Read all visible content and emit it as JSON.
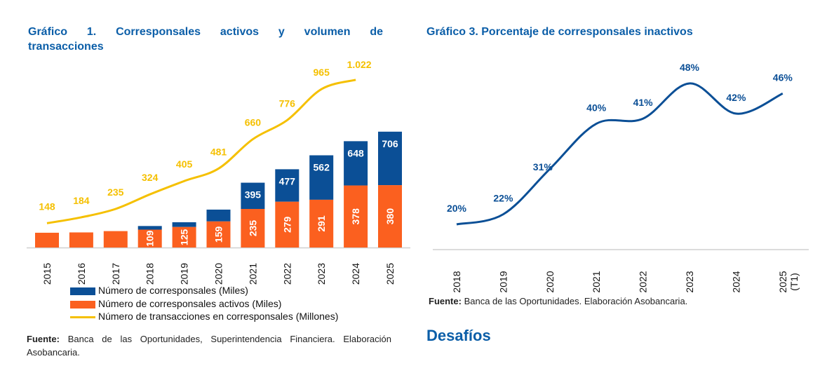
{
  "chart1": {
    "title_line1": "Gráfico 1. Corresponsales activos y volumen de",
    "title_line2": "transacciones",
    "source_label": "Fuente:",
    "source_text": "Banca de las Oportunidades, Superintendencia Financiera. Elaboración Asobancaria."
  },
  "chart3": {
    "title": "Gráfico 3. Porcentaje de corresponsales inactivos",
    "source_label": "Fuente:",
    "source_text": "Banca de las Oportunidades. Elaboración Asobancaria."
  },
  "section_heading": "Desafíos",
  "colors": {
    "title": "#0b5ea8",
    "total": "#0b4f96",
    "active": "#fb601f",
    "transactions": "#f5c000",
    "line3": "#0b4f96"
  },
  "chart_data": [
    {
      "type": "bar",
      "stacked": true,
      "categories": [
        "2015",
        "2016",
        "2017",
        "2018",
        "2019",
        "2020",
        "2021",
        "2022",
        "2023",
        "2024",
        "2025"
      ],
      "series": [
        {
          "name": "Número de corresponsales (Miles)",
          "kind": "bar-total",
          "values": [
            90,
            92,
            100,
            131,
            154,
            231,
            395,
            477,
            562,
            648,
            706
          ],
          "labels": [
            "",
            "",
            "",
            "",
            "",
            "",
            "395",
            "477",
            "562",
            "648",
            "706"
          ]
        },
        {
          "name": "Número de corresponsales activos (Miles)",
          "kind": "bar",
          "values": [
            90,
            92,
            100,
            109,
            125,
            159,
            235,
            279,
            291,
            378,
            380
          ],
          "labels": [
            "",
            "",
            "",
            "109",
            "125",
            "159",
            "235",
            "279",
            "291",
            "378",
            "380"
          ]
        },
        {
          "name": "Número de transacciones en corresponsales (Millones)",
          "kind": "line",
          "values": [
            148,
            184,
            235,
            324,
            405,
            481,
            660,
            776,
            965,
            1022,
            null
          ],
          "labels": [
            "148",
            "184",
            "235",
            "324",
            "405",
            "481",
            "660",
            "776",
            "965",
            "1.022",
            ""
          ]
        }
      ],
      "legend": "bottom",
      "grid": false
    },
    {
      "type": "line",
      "categories": [
        "2018",
        "2019",
        "2020",
        "2021",
        "2022",
        "2023",
        "2024",
        "2025 (T1)"
      ],
      "values": [
        20,
        22,
        31,
        40,
        41,
        48,
        42,
        46
      ],
      "labels": [
        "20%",
        "22%",
        "31%",
        "40%",
        "41%",
        "48%",
        "42%",
        "46%"
      ],
      "grid": false
    }
  ]
}
